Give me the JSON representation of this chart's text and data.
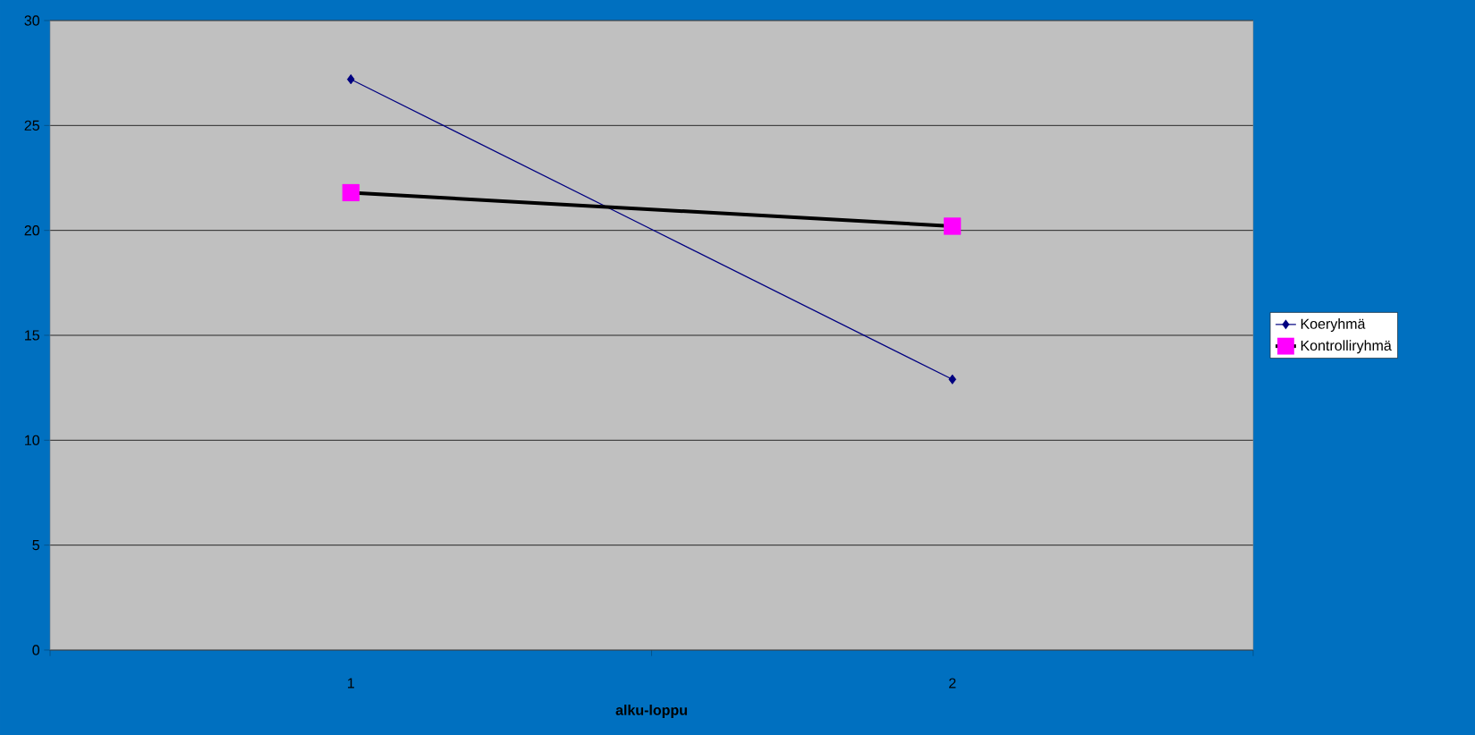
{
  "chart_data": {
    "type": "line",
    "xlabel": "alku-loppu",
    "categories": [
      "1",
      "2"
    ],
    "series": [
      {
        "name": "Koeryhmä",
        "color": "#000080",
        "colors": [
          "#000080",
          "#000080"
        ],
        "marker": "diamond",
        "values": [
          27.2,
          12.9
        ]
      },
      {
        "name": "Kontrolliryhmä",
        "color": "#000000",
        "colors": [
          "#ff00ff",
          "#ff00ff"
        ],
        "marker": "square",
        "values": [
          21.8,
          20.2
        ]
      }
    ],
    "ylim": [
      0,
      30
    ],
    "yticks": [
      0,
      5,
      10,
      15,
      20,
      25,
      30
    ],
    "grid": "y",
    "legend": "right",
    "line_style": "solid"
  }
}
